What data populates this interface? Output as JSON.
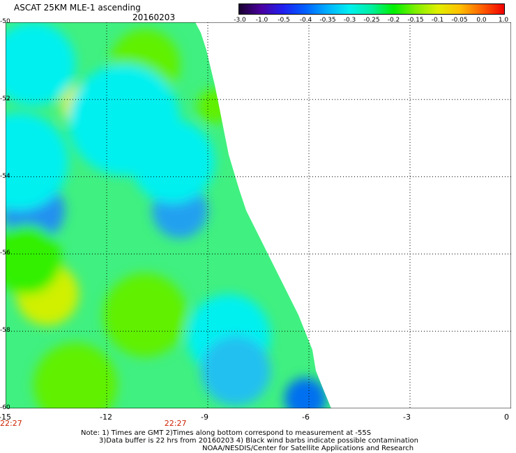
{
  "header": {
    "title": "ASCAT 25KM MLE-1 ascending",
    "date": "20160203"
  },
  "colorbar": {
    "labels": [
      "-3.0",
      "-1.0",
      "-0.5",
      "-0.4",
      "-0.35",
      "-0.3",
      "-0.25",
      "-0.2",
      "-0.15",
      "-0.1",
      "-0.05",
      "0.0",
      "1.0"
    ],
    "colors": [
      "#1a0030",
      "#4a00a0",
      "#2020f0",
      "#0060ff",
      "#00b0ff",
      "#00f0f0",
      "#00f0a0",
      "#00f000",
      "#80f000",
      "#e0f000",
      "#ffc000",
      "#ff6000",
      "#f00000"
    ]
  },
  "map": {
    "lon_ticks": [
      "-15",
      "-12",
      "-9",
      "-6",
      "-3",
      "0"
    ],
    "lat_ticks": [
      "-50",
      "-52",
      "-54",
      "-56",
      "-58",
      "-60"
    ],
    "time_labels": [
      "22:27",
      "22:27"
    ]
  },
  "notes": {
    "line1": "Note: 1) Times are GMT 2)Times along bottom correspond to measurement at -55S",
    "line2": "3)Data buffer is 22 hrs from 20160203 4) Black wind barbs indicate possible contamination",
    "line3": "NOAA/NESDIS/Center for Satellite Applications and Research"
  }
}
